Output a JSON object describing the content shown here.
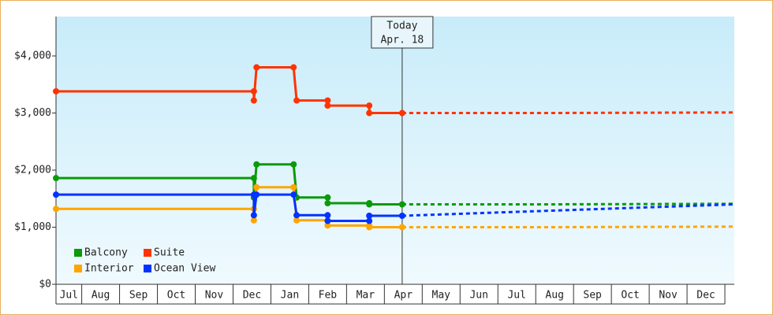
{
  "chart_data": {
    "type": "line",
    "categories": [
      "Jul",
      "Aug",
      "Sep",
      "Oct",
      "Nov",
      "Dec",
      "Jan",
      "Feb",
      "Mar",
      "Apr",
      "May",
      "Jun",
      "Jul",
      "Aug",
      "Sep",
      "Oct",
      "Nov",
      "Dec"
    ],
    "xlim": [
      0.32,
      18.25
    ],
    "ylim": [
      0,
      4690
    ],
    "yticks": [
      {
        "value": 0,
        "label": "$0"
      },
      {
        "value": 1000,
        "label": "$1,000"
      },
      {
        "value": 2000,
        "label": "$2,000"
      },
      {
        "value": 3000,
        "label": "$3,000"
      },
      {
        "value": 4000,
        "label": "$4,000"
      }
    ],
    "today": {
      "x": 9.47,
      "label": [
        "Today",
        "Apr. 18"
      ]
    },
    "series": [
      {
        "name": "Balcony",
        "color": "#0a9a0a",
        "x": [
          0.32,
          5.55,
          5.55,
          5.62,
          6.6,
          6.68,
          7.5,
          7.5,
          8.6,
          8.6,
          9.47
        ],
        "values": [
          1860,
          1860,
          1520,
          2100,
          2100,
          1520,
          1520,
          1420,
          1420,
          1400,
          1400
        ],
        "forecast": {
          "x": [
            9.47,
            13.3,
            18.25
          ],
          "values": [
            1400,
            1400,
            1410
          ]
        }
      },
      {
        "name": "Suite",
        "color": "#ff3300",
        "x": [
          0.32,
          5.55,
          5.55,
          5.62,
          6.6,
          6.68,
          7.5,
          7.5,
          8.6,
          8.6,
          9.47
        ],
        "values": [
          3380,
          3380,
          3220,
          3800,
          3800,
          3220,
          3220,
          3130,
          3130,
          3000,
          3000
        ],
        "forecast": {
          "x": [
            9.47,
            13.3,
            18.25
          ],
          "values": [
            3000,
            3000,
            3010
          ]
        }
      },
      {
        "name": "Interior",
        "color": "#ffa500",
        "x": [
          0.32,
          5.55,
          5.55,
          5.62,
          6.6,
          6.68,
          7.5,
          7.5,
          8.6,
          8.6,
          9.47
        ],
        "values": [
          1320,
          1320,
          1120,
          1700,
          1700,
          1120,
          1120,
          1030,
          1030,
          1000,
          1000
        ],
        "forecast": {
          "x": [
            9.47,
            13.3,
            18.25
          ],
          "values": [
            1000,
            1000,
            1010
          ]
        }
      },
      {
        "name": "Ocean View",
        "color": "#0033ff",
        "x": [
          0.32,
          5.55,
          5.55,
          5.62,
          6.6,
          6.68,
          7.5,
          7.5,
          8.6,
          8.6,
          9.47
        ],
        "values": [
          1570,
          1570,
          1210,
          1570,
          1570,
          1210,
          1210,
          1110,
          1110,
          1200,
          1200
        ],
        "forecast": {
          "x": [
            9.47,
            18.25
          ],
          "values": [
            1200,
            1400
          ]
        }
      }
    ]
  }
}
